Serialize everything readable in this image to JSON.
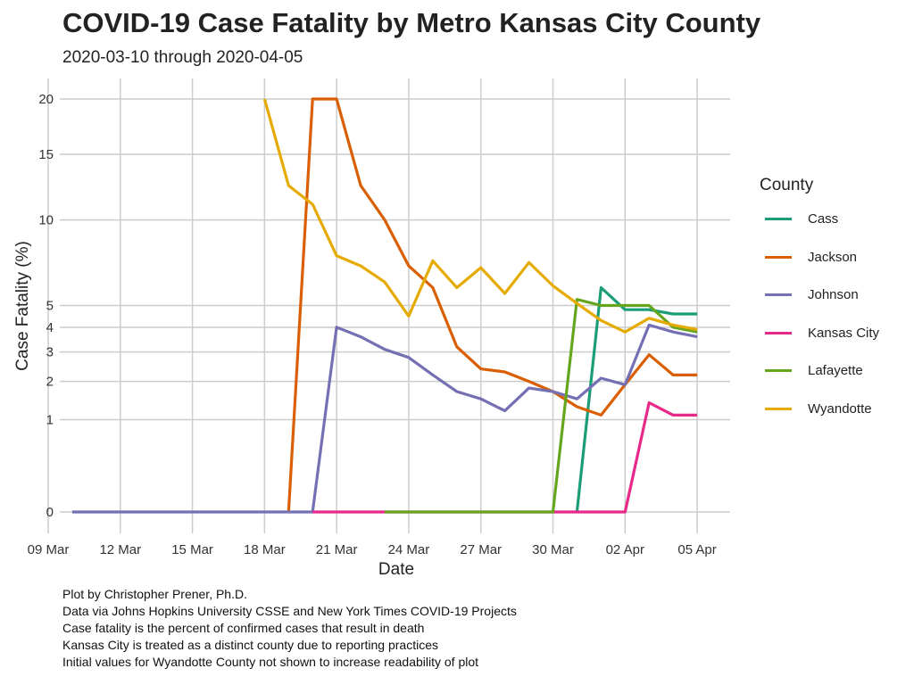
{
  "header": {
    "title": "COVID-19 Case Fatality by Metro Kansas City County",
    "subtitle": "2020-03-10 through 2020-04-05"
  },
  "caption": {
    "lines": [
      "Plot by Christopher Prener, Ph.D.",
      "Data via Johns Hopkins University CSSE and New York Times COVID-19 Projects",
      "Case fatality is the percent of confirmed cases that result in death",
      "Kansas City is treated as a distinct county due to reporting practices",
      "Initial values for Wyandotte County not shown to increase readability of plot"
    ]
  },
  "chart_data": {
    "type": "line",
    "xlabel": "Date",
    "ylabel": "Case Fatality (%)",
    "x_tick_labels": [
      "09 Mar",
      "12 Mar",
      "15 Mar",
      "18 Mar",
      "21 Mar",
      "24 Mar",
      "27 Mar",
      "30 Mar",
      "02 Apr",
      "05 Apr"
    ],
    "x_tick_dates": [
      "2020-03-09",
      "2020-03-12",
      "2020-03-15",
      "2020-03-18",
      "2020-03-21",
      "2020-03-24",
      "2020-03-27",
      "2020-03-30",
      "2020-04-02",
      "2020-04-05"
    ],
    "y_ticks": [
      0,
      1,
      2,
      3,
      4,
      5,
      10,
      15,
      20
    ],
    "y_scale": "sqrt",
    "xlim": [
      "2020-03-09",
      "2020-04-06"
    ],
    "ylim": [
      0,
      21
    ],
    "grid": true,
    "legend_title": "County",
    "legend_position": "right",
    "series": [
      {
        "name": "Cass",
        "color": "#1b9e77",
        "points": [
          [
            "2020-03-31",
            0
          ],
          [
            "2020-04-01",
            5.9
          ],
          [
            "2020-04-02",
            4.8
          ],
          [
            "2020-04-03",
            4.8
          ],
          [
            "2020-04-04",
            4.6
          ],
          [
            "2020-04-05",
            4.6
          ]
        ]
      },
      {
        "name": "Jackson",
        "color": "#d95f02",
        "points": [
          [
            "2020-03-19",
            0
          ],
          [
            "2020-03-20",
            20
          ],
          [
            "2020-03-21",
            20
          ],
          [
            "2020-03-22",
            12.5
          ],
          [
            "2020-03-23",
            10
          ],
          [
            "2020-03-24",
            7.1
          ],
          [
            "2020-03-25",
            5.9
          ],
          [
            "2020-03-26",
            3.2
          ],
          [
            "2020-03-27",
            2.4
          ],
          [
            "2020-03-28",
            2.3
          ],
          [
            "2020-03-29",
            2.0
          ],
          [
            "2020-03-30",
            1.7
          ],
          [
            "2020-03-31",
            1.3
          ],
          [
            "2020-04-01",
            1.1
          ],
          [
            "2020-04-02",
            1.9
          ],
          [
            "2020-04-03",
            2.9
          ],
          [
            "2020-04-04",
            2.2
          ],
          [
            "2020-04-05",
            2.2
          ]
        ]
      },
      {
        "name": "Johnson",
        "color": "#7570b3",
        "points": [
          [
            "2020-03-10",
            0
          ],
          [
            "2020-03-11",
            0
          ],
          [
            "2020-03-12",
            0
          ],
          [
            "2020-03-13",
            0
          ],
          [
            "2020-03-14",
            0
          ],
          [
            "2020-03-15",
            0
          ],
          [
            "2020-03-16",
            0
          ],
          [
            "2020-03-17",
            0
          ],
          [
            "2020-03-18",
            0
          ],
          [
            "2020-03-19",
            0
          ],
          [
            "2020-03-20",
            0
          ],
          [
            "2020-03-21",
            4.0
          ],
          [
            "2020-03-22",
            3.6
          ],
          [
            "2020-03-23",
            3.1
          ],
          [
            "2020-03-24",
            2.8
          ],
          [
            "2020-03-25",
            2.2
          ],
          [
            "2020-03-26",
            1.7
          ],
          [
            "2020-03-27",
            1.5
          ],
          [
            "2020-03-28",
            1.2
          ],
          [
            "2020-03-29",
            1.8
          ],
          [
            "2020-03-30",
            1.7
          ],
          [
            "2020-03-31",
            1.5
          ],
          [
            "2020-04-01",
            2.1
          ],
          [
            "2020-04-02",
            1.9
          ],
          [
            "2020-04-03",
            4.1
          ],
          [
            "2020-04-04",
            3.8
          ],
          [
            "2020-04-05",
            3.6
          ]
        ]
      },
      {
        "name": "Kansas City",
        "color": "#e7298a",
        "points": [
          [
            "2020-03-20",
            0
          ],
          [
            "2020-03-21",
            0
          ],
          [
            "2020-03-22",
            0
          ],
          [
            "2020-03-23",
            0
          ],
          [
            "2020-03-24",
            0
          ],
          [
            "2020-03-25",
            0
          ],
          [
            "2020-03-26",
            0
          ],
          [
            "2020-03-27",
            0
          ],
          [
            "2020-03-28",
            0
          ],
          [
            "2020-03-29",
            0
          ],
          [
            "2020-03-30",
            0
          ],
          [
            "2020-03-31",
            0
          ],
          [
            "2020-04-01",
            0
          ],
          [
            "2020-04-02",
            0
          ],
          [
            "2020-04-03",
            1.4
          ],
          [
            "2020-04-04",
            1.1
          ],
          [
            "2020-04-05",
            1.1
          ]
        ]
      },
      {
        "name": "Lafayette",
        "color": "#66a61e",
        "points": [
          [
            "2020-03-23",
            0
          ],
          [
            "2020-03-24",
            0
          ],
          [
            "2020-03-25",
            0
          ],
          [
            "2020-03-26",
            0
          ],
          [
            "2020-03-27",
            0
          ],
          [
            "2020-03-28",
            0
          ],
          [
            "2020-03-29",
            0
          ],
          [
            "2020-03-30",
            0
          ],
          [
            "2020-03-31",
            5.3
          ],
          [
            "2020-04-01",
            5.0
          ],
          [
            "2020-04-02",
            5.0
          ],
          [
            "2020-04-03",
            5.0
          ],
          [
            "2020-04-04",
            4.0
          ],
          [
            "2020-04-05",
            3.8
          ]
        ]
      },
      {
        "name": "Wyandotte",
        "color": "#e6ab02",
        "points": [
          [
            "2020-03-18",
            20
          ],
          [
            "2020-03-19",
            12.5
          ],
          [
            "2020-03-20",
            11.1
          ],
          [
            "2020-03-21",
            7.7
          ],
          [
            "2020-03-22",
            7.1
          ],
          [
            "2020-03-23",
            6.2
          ],
          [
            "2020-03-24",
            4.5
          ],
          [
            "2020-03-25",
            7.4
          ],
          [
            "2020-03-26",
            5.9
          ],
          [
            "2020-03-27",
            7.0
          ],
          [
            "2020-03-28",
            5.6
          ],
          [
            "2020-03-29",
            7.3
          ],
          [
            "2020-03-30",
            6.0
          ],
          [
            "2020-03-31",
            5.1
          ],
          [
            "2020-04-01",
            4.3
          ],
          [
            "2020-04-02",
            3.8
          ],
          [
            "2020-04-03",
            4.4
          ],
          [
            "2020-04-04",
            4.1
          ],
          [
            "2020-04-05",
            3.9
          ]
        ]
      }
    ]
  }
}
